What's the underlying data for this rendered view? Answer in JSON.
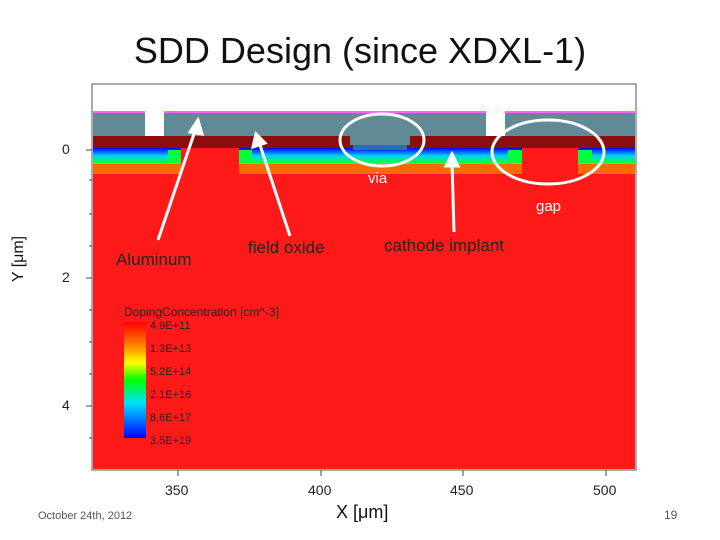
{
  "title": "SDD Design (since XDXL-1)",
  "annotations": {
    "via": "via",
    "gap": "gap",
    "aluminum": "Aluminum",
    "field_oxide": "field oxide",
    "cathode_implant": "cathode implant"
  },
  "axes": {
    "x_label": "X [μm]",
    "y_label": "Y [μm]",
    "x_ticks": [
      "350",
      "400",
      "450",
      "500"
    ],
    "y_ticks": [
      "0",
      "2",
      "4"
    ]
  },
  "legend": {
    "title": "DopingConcentration [cm^-3]",
    "values": [
      "4.9E+11",
      "1.3E+13",
      "5.2E+14",
      "2.1E+16",
      "8.6E+17",
      "3.5E+19"
    ]
  },
  "footer": {
    "date": "October 24th, 2012",
    "page": "19"
  },
  "colors": {
    "substrate": "#ff1a1a",
    "aluminum": "#5f8a96",
    "oxide": "#8b0e0e",
    "highlight": "#ffffff"
  }
}
